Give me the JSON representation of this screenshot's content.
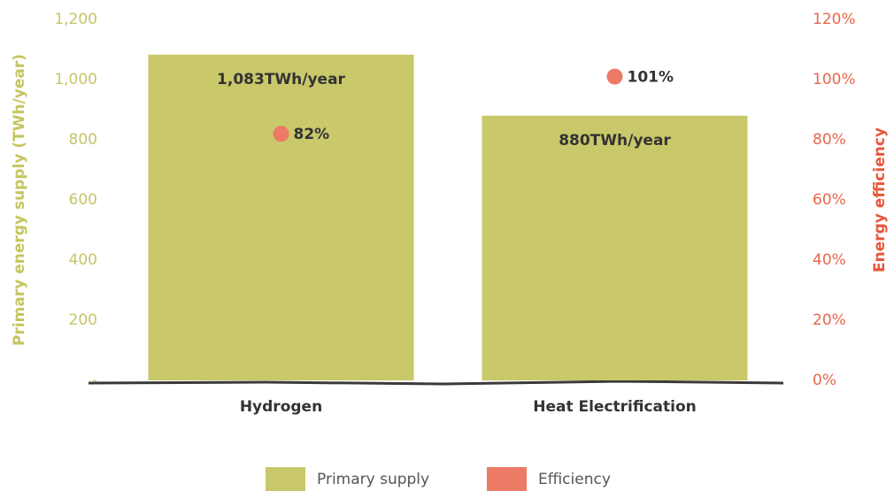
{
  "chart_data": {
    "type": "bar",
    "categories": [
      "Hydrogen",
      "Heat Electrification"
    ],
    "ylabel": "Primary energy supply (TWh/year)",
    "y2label": "Energy efficiency",
    "ylim": [
      0,
      1200
    ],
    "yticks": [
      {
        "value": 0,
        "label": "-"
      },
      200,
      400,
      600,
      800,
      {
        "value": 1000,
        "label": "1,000"
      },
      {
        "value": 1200,
        "label": "1,200"
      }
    ],
    "y2lim": [
      0,
      120
    ],
    "y2ticks": [
      {
        "value": 0,
        "label": "0%"
      },
      {
        "value": 20,
        "label": "20%"
      },
      {
        "value": 40,
        "label": "40%"
      },
      {
        "value": 60,
        "label": "60%"
      },
      {
        "value": 80,
        "label": "80%"
      },
      {
        "value": 100,
        "label": "100%"
      },
      {
        "value": 120,
        "label": "120%"
      }
    ],
    "legend": "bottom",
    "series": [
      {
        "name": "Primary supply",
        "type": "bar",
        "color": "#c9c86a",
        "values": [
          1083,
          880
        ],
        "value_labels": [
          "1,083TWh/year",
          "880TWh/year"
        ]
      },
      {
        "name": "Efficiency",
        "type": "scatter",
        "axis": "y2",
        "color": "#ec7a64",
        "values": [
          82,
          101
        ],
        "value_labels": [
          "82%",
          "101%"
        ]
      }
    ]
  }
}
